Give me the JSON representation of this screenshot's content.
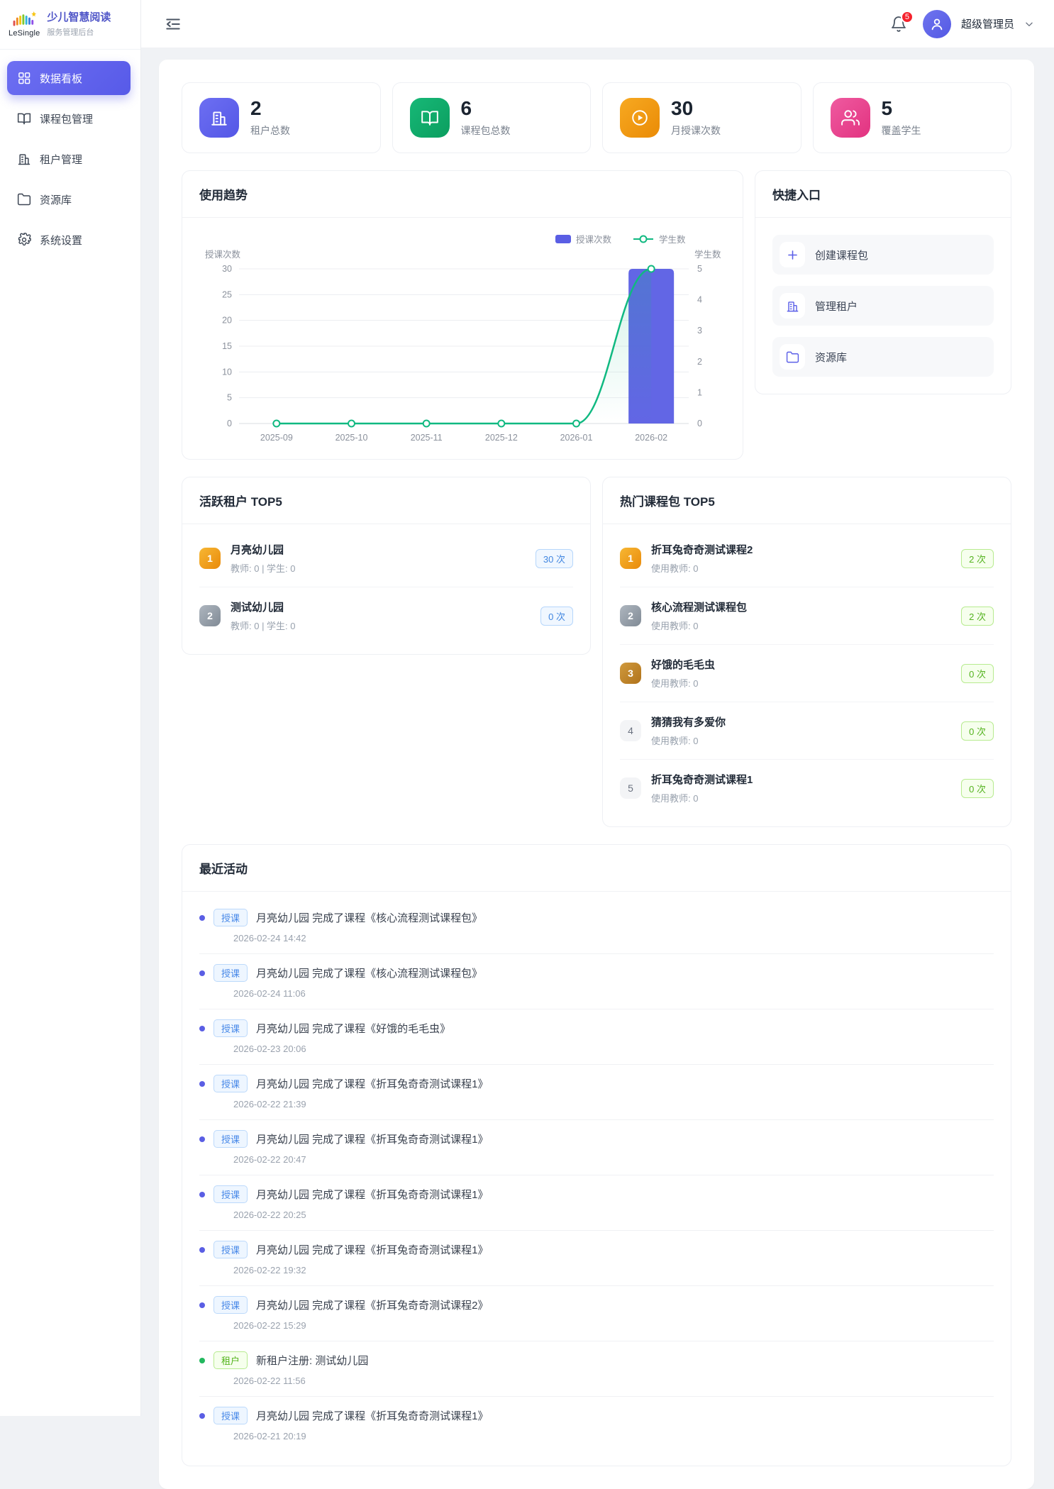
{
  "app": {
    "brand": "LeSingle",
    "title": "少儿智慧阅读",
    "subtitle": "服务管理后台"
  },
  "topbar": {
    "notification_count": "5",
    "user_name": "超级管理员"
  },
  "sidebar": {
    "items": [
      {
        "label": "数据看板",
        "icon": "dashboard-icon",
        "active": true
      },
      {
        "label": "课程包管理",
        "icon": "book-icon",
        "active": false
      },
      {
        "label": "租户管理",
        "icon": "building-icon",
        "active": false
      },
      {
        "label": "资源库",
        "icon": "folder-icon",
        "active": false
      },
      {
        "label": "系统设置",
        "icon": "gear-icon",
        "active": false
      }
    ]
  },
  "stats": [
    {
      "value": "2",
      "label": "租户总数",
      "icon": "building-icon",
      "color": "#5b5fe8"
    },
    {
      "value": "6",
      "label": "课程包总数",
      "icon": "book-icon",
      "color": "#0fa968"
    },
    {
      "value": "30",
      "label": "月授课次数",
      "icon": "play-icon",
      "color": "#f0940a"
    },
    {
      "value": "5",
      "label": "覆盖学生",
      "icon": "users-icon",
      "color": "#e8418f"
    }
  ],
  "sections": {
    "trend": {
      "title": "使用趋势"
    },
    "quick": {
      "title": "快捷入口",
      "items": [
        {
          "label": "创建课程包",
          "icon": "plus-icon"
        },
        {
          "label": "管理租户",
          "icon": "building-icon"
        },
        {
          "label": "资源库",
          "icon": "folder-icon"
        }
      ]
    },
    "tenants": {
      "title": "活跃租户 TOP5",
      "items": [
        {
          "rank": "1",
          "name": "月亮幼儿园",
          "meta": "教师: 0 | 学生: 0",
          "badge": "30 次"
        },
        {
          "rank": "2",
          "name": "测试幼儿园",
          "meta": "教师: 0 | 学生: 0",
          "badge": "0 次"
        }
      ]
    },
    "packages": {
      "title": "热门课程包 TOP5",
      "items": [
        {
          "rank": "1",
          "name": "折耳兔奇奇测试课程2",
          "meta": "使用教师: 0",
          "badge": "2 次"
        },
        {
          "rank": "2",
          "name": "核心流程测试课程包",
          "meta": "使用教师: 0",
          "badge": "2 次"
        },
        {
          "rank": "3",
          "name": "好饿的毛毛虫",
          "meta": "使用教师: 0",
          "badge": "0 次"
        },
        {
          "rank": "4",
          "name": "猜猜我有多爱你",
          "meta": "使用教师: 0",
          "badge": "0 次"
        },
        {
          "rank": "5",
          "name": "折耳兔奇奇测试课程1",
          "meta": "使用教师: 0",
          "badge": "0 次"
        }
      ]
    },
    "activities": {
      "title": "最近活动",
      "items": [
        {
          "tag": "授课",
          "text": "月亮幼儿园 完成了课程《核心流程测试课程包》",
          "time": "2026-02-24 14:42"
        },
        {
          "tag": "授课",
          "text": "月亮幼儿园 完成了课程《核心流程测试课程包》",
          "time": "2026-02-24 11:06"
        },
        {
          "tag": "授课",
          "text": "月亮幼儿园 完成了课程《好饿的毛毛虫》",
          "time": "2026-02-23 20:06"
        },
        {
          "tag": "授课",
          "text": "月亮幼儿园 完成了课程《折耳兔奇奇测试课程1》",
          "time": "2026-02-22 21:39"
        },
        {
          "tag": "授课",
          "text": "月亮幼儿园 完成了课程《折耳兔奇奇测试课程1》",
          "time": "2026-02-22 20:47"
        },
        {
          "tag": "授课",
          "text": "月亮幼儿园 完成了课程《折耳兔奇奇测试课程1》",
          "time": "2026-02-22 20:25"
        },
        {
          "tag": "授课",
          "text": "月亮幼儿园 完成了课程《折耳兔奇奇测试课程1》",
          "time": "2026-02-22 19:32"
        },
        {
          "tag": "授课",
          "text": "月亮幼儿园 完成了课程《折耳兔奇奇测试课程2》",
          "time": "2026-02-22 15:29"
        },
        {
          "tag": "租户",
          "text": "新租户注册: 测试幼儿园",
          "time": "2026-02-22 11:56"
        },
        {
          "tag": "授课",
          "text": "月亮幼儿园 完成了课程《折耳兔奇奇测试课程1》",
          "time": "2026-02-21 20:19"
        }
      ]
    }
  },
  "chart_data": {
    "type": "bar",
    "subtype": "bar-line-combo",
    "categories": [
      "2025-09",
      "2025-10",
      "2025-11",
      "2025-12",
      "2026-01",
      "2026-02"
    ],
    "series": [
      {
        "name": "授课次数",
        "type": "bar",
        "axis": "left",
        "color": "#5a5ee4",
        "values": [
          0,
          0,
          0,
          0,
          0,
          30
        ]
      },
      {
        "name": "学生数",
        "type": "line",
        "axis": "right",
        "color": "#10b981",
        "values": [
          0,
          0,
          0,
          0,
          0,
          5
        ]
      }
    ],
    "title": "使用趋势",
    "left_axis": {
      "title": "授课次数",
      "min": 0,
      "max": 30,
      "step": 5
    },
    "right_axis": {
      "title": "学生数",
      "min": 0,
      "max": 5,
      "step": 1
    },
    "grid": true,
    "legend_position": "top-right"
  }
}
